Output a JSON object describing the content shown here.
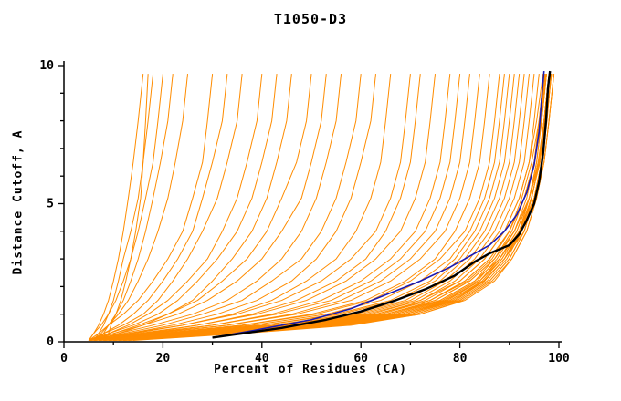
{
  "chart_data": {
    "type": "line",
    "title": "T1050-D3",
    "xlabel": "Percent of Residues (CA)",
    "ylabel": "Distance Cutoff, A",
    "xlim": [
      0,
      100
    ],
    "ylim": [
      0,
      10
    ],
    "x_major_ticks": [
      0,
      20,
      40,
      60,
      80,
      100
    ],
    "x_minor_tick_step": 10,
    "y_major_ticks": [
      0,
      5,
      10
    ],
    "y_minor_tick_step": 1,
    "grid": false,
    "legend": "none",
    "y_levels": [
      0.05,
      0.3,
      0.6,
      1.0,
      1.5,
      2.2,
      3.0,
      4.0,
      5.2,
      6.5,
      8.0,
      9.7
    ],
    "ensemble": {
      "name": "model-gdt-curves",
      "color": "#ff8c00",
      "x_at_y_levels": [
        [
          5,
          6,
          7,
          8,
          9,
          10,
          11,
          12,
          13,
          14,
          15,
          16
        ],
        [
          6,
          7,
          8,
          9,
          10,
          11,
          12,
          13.5,
          15,
          16,
          17,
          18
        ],
        [
          5,
          6,
          7.5,
          9,
          10.5,
          12,
          13.5,
          15,
          16.5,
          18,
          19,
          20
        ],
        [
          7,
          8,
          9,
          10.5,
          12,
          13.5,
          15,
          16.5,
          18,
          19.5,
          21,
          22
        ],
        [
          6,
          7.5,
          9,
          11,
          13,
          15,
          17,
          19,
          21,
          22.5,
          24,
          25
        ],
        [
          8,
          9,
          9.5,
          10.5,
          11.5,
          12.5,
          13.5,
          14.5,
          15.5,
          16,
          16.5,
          17
        ],
        [
          5,
          7,
          9,
          12,
          15,
          18,
          21,
          24,
          26,
          28,
          29,
          30
        ],
        [
          6,
          8,
          11,
          14,
          17,
          20,
          23,
          26,
          28,
          30,
          32,
          33
        ],
        [
          5,
          8,
          12,
          16,
          19,
          22,
          25,
          28,
          31,
          33,
          35,
          36
        ],
        [
          6,
          9,
          13,
          17,
          21,
          25,
          29,
          32,
          35,
          37,
          39,
          40
        ],
        [
          5,
          9,
          14,
          19,
          23,
          27,
          31,
          35,
          38,
          40,
          42,
          43
        ],
        [
          7,
          11,
          16,
          21,
          26,
          30,
          34,
          38,
          41,
          43,
          45,
          46
        ],
        [
          6,
          10,
          15,
          21,
          27,
          32,
          37,
          41,
          44,
          47,
          49,
          50
        ],
        [
          5,
          10,
          16,
          23,
          29,
          35,
          40,
          44,
          48,
          50,
          52,
          53
        ],
        [
          6,
          11,
          18,
          26,
          33,
          39,
          44,
          48,
          51,
          53,
          55,
          56
        ],
        [
          5,
          12,
          20,
          28,
          36,
          42,
          48,
          52,
          55,
          57,
          59,
          60
        ],
        [
          7,
          13,
          22,
          31,
          39,
          46,
          51,
          55,
          58,
          60,
          62,
          63
        ],
        [
          6,
          14,
          24,
          34,
          42,
          49,
          55,
          59,
          62,
          64,
          65,
          66
        ],
        [
          5,
          13,
          24,
          35,
          44,
          52,
          58,
          63,
          66,
          68,
          69,
          70
        ],
        [
          8,
          16,
          27,
          38,
          47,
          55,
          61,
          65,
          68,
          70,
          71,
          72
        ],
        [
          6,
          15,
          27,
          39,
          49,
          57,
          63,
          68,
          71,
          73,
          74,
          75
        ],
        [
          7,
          17,
          30,
          42,
          52,
          60,
          66,
          71,
          74,
          76,
          77,
          78
        ],
        [
          5,
          16,
          30,
          43,
          54,
          62,
          68,
          73,
          76,
          78,
          79,
          80
        ],
        [
          6,
          18,
          33,
          46,
          56,
          64,
          70,
          75,
          78,
          80,
          81,
          82
        ],
        [
          5,
          17,
          33,
          47,
          58,
          66,
          72,
          77,
          80,
          82,
          83,
          84
        ],
        [
          7,
          20,
          36,
          50,
          61,
          69,
          75,
          79,
          82,
          84,
          85,
          86
        ],
        [
          6,
          19,
          36,
          51,
          62,
          70,
          76,
          81,
          84,
          86,
          87,
          88
        ],
        [
          5,
          20,
          38,
          53,
          64,
          72,
          78,
          82,
          85,
          87,
          88,
          89
        ],
        [
          8,
          22,
          40,
          55,
          66,
          74,
          79,
          83,
          86,
          88,
          89,
          90
        ],
        [
          6,
          21,
          40,
          56,
          67,
          75,
          80,
          84,
          87,
          89,
          90,
          91
        ],
        [
          5,
          22,
          42,
          58,
          69,
          76,
          81,
          85,
          88,
          90,
          91,
          92
        ],
        [
          7,
          24,
          44,
          59,
          70,
          77,
          82,
          86,
          89,
          91,
          92,
          93
        ],
        [
          6,
          23,
          44,
          60,
          71,
          78,
          83,
          87,
          90,
          92,
          93,
          94
        ],
        [
          5,
          25,
          46,
          62,
          72,
          79,
          84,
          88,
          91,
          93,
          94,
          95
        ],
        [
          8,
          26,
          47,
          63,
          73,
          80,
          85,
          89,
          92,
          94,
          95,
          96
        ],
        [
          6,
          25,
          47,
          63,
          74,
          81,
          86,
          90,
          93,
          95,
          96,
          97
        ],
        [
          7,
          27,
          49,
          65,
          75,
          82,
          87,
          91,
          94,
          96,
          97,
          98
        ],
        [
          5,
          26,
          49,
          65,
          76,
          83,
          88,
          92,
          95,
          97,
          98,
          99
        ],
        [
          10,
          30,
          52,
          67,
          77,
          84,
          88,
          92,
          94,
          96,
          97,
          98
        ],
        [
          12,
          32,
          54,
          69,
          79,
          85,
          89,
          93,
          95,
          96.5,
          97.5,
          98.5
        ],
        [
          9,
          28,
          50,
          66,
          76,
          83,
          87,
          91,
          94,
          95.5,
          96.5,
          97.5
        ],
        [
          11,
          33,
          55,
          70,
          79,
          85,
          89,
          92,
          94.5,
          96,
          97,
          98
        ],
        [
          8,
          29,
          51,
          67,
          77,
          84,
          88,
          91.5,
          94,
          95.5,
          96.5,
          97.5
        ],
        [
          13,
          34,
          56,
          71,
          80,
          86,
          90,
          93,
          95,
          96.5,
          97.5,
          98.5
        ],
        [
          10,
          31,
          53,
          68,
          78,
          84.5,
          88.5,
          92,
          94.5,
          96,
          97,
          98
        ],
        [
          9,
          30,
          52,
          68,
          77.5,
          84,
          88,
          91.5,
          94,
          96,
          97,
          98
        ],
        [
          14,
          36,
          58,
          72,
          81,
          87,
          90.5,
          93.5,
          95.5,
          97,
          98,
          99
        ],
        [
          12,
          33,
          55,
          70,
          79.5,
          85.5,
          89.5,
          92.5,
          95,
          96.5,
          97.5,
          98.5
        ],
        [
          9,
          27,
          48,
          64,
          74,
          81.5,
          86.5,
          90,
          92.5,
          94.5,
          96,
          97
        ],
        [
          11,
          31,
          53,
          69,
          78.5,
          85,
          89,
          92.5,
          94.5,
          96,
          97,
          98
        ],
        [
          10,
          29,
          50,
          66,
          76.5,
          83.5,
          87.5,
          91,
          93.5,
          95,
          96.3,
          97.3
        ],
        [
          8,
          26,
          47,
          63,
          74,
          81,
          86,
          90,
          93,
          95,
          96.2,
          97.2
        ],
        [
          12,
          34,
          56,
          71,
          80,
          86,
          90,
          93,
          95,
          96.6,
          97.6,
          98.4
        ],
        [
          7,
          24,
          45,
          61,
          72,
          80,
          85,
          89,
          92,
          94,
          95.5,
          96.8
        ],
        [
          13,
          35,
          57,
          72,
          80.5,
          86.5,
          90.5,
          93.5,
          95.5,
          97,
          98,
          99
        ],
        [
          9,
          28,
          49,
          65,
          75,
          82,
          87,
          90.5,
          93,
          95,
          96.5,
          97.5
        ],
        [
          10,
          30,
          51,
          67,
          77,
          84,
          88.5,
          92,
          94,
          95.8,
          97,
          98
        ],
        [
          11,
          32,
          54,
          69,
          78,
          84.8,
          89,
          92.2,
          94.4,
          96.2,
          97.2,
          98.2
        ]
      ]
    },
    "highlight": {
      "name": "highlighted-model-curve",
      "color": "#1a1ab4",
      "points": {
        "y": [
          0.15,
          0.4,
          0.8,
          1.2,
          1.7,
          2.2,
          2.7,
          3.1,
          3.5,
          4.0,
          4.6,
          5.4,
          6.4,
          7.6,
          9.0,
          9.8
        ],
        "x": [
          30,
          38,
          50,
          58,
          65,
          72,
          78,
          82,
          86,
          89,
          91.5,
          93.5,
          95,
          96,
          96.6,
          97
        ]
      }
    },
    "best": {
      "name": "best-model-curve",
      "color": "#000000",
      "points": {
        "y": [
          0.15,
          0.3,
          0.5,
          0.8,
          1.1,
          1.5,
          1.9,
          2.4,
          2.9,
          3.2,
          3.5,
          3.9,
          4.4,
          5.0,
          5.8,
          6.8,
          8.0,
          9.2,
          9.8
        ],
        "x": [
          30,
          36,
          44,
          53,
          60,
          67,
          73,
          79,
          83,
          86,
          90,
          92,
          93.5,
          95,
          96,
          96.8,
          97.4,
          97.8,
          98.2
        ]
      }
    }
  }
}
